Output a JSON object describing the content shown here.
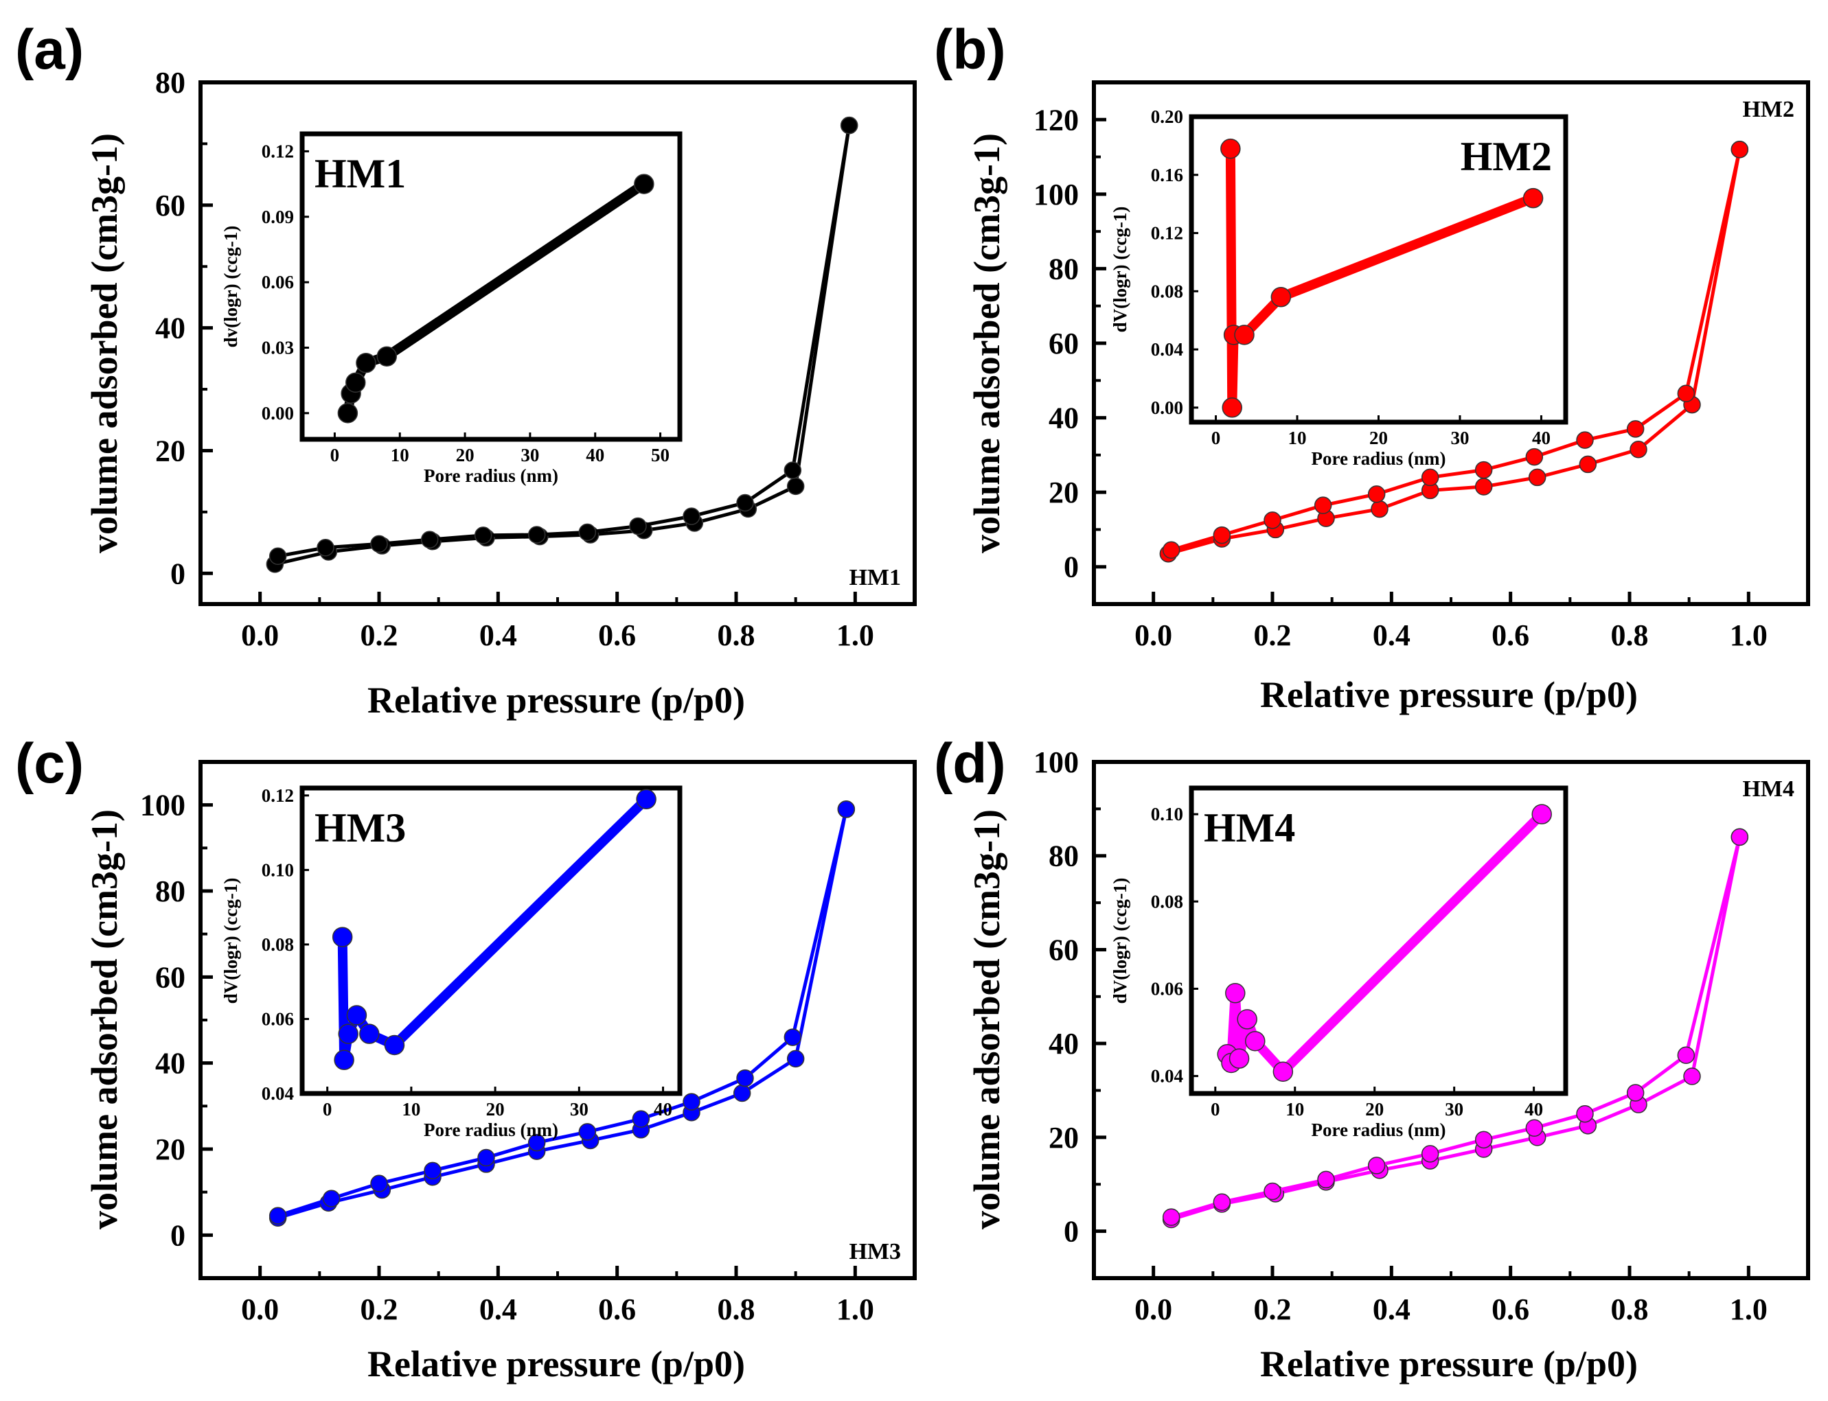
{
  "panels": [
    {
      "label": "(a)",
      "color": "#000000",
      "corner_label": "HM1",
      "corner_pos": "bottom-right",
      "chart_data": {
        "type": "line",
        "xlabel": "Relative pressure (p/p0)",
        "ylabel": "volume adsorbed (cm3g-1)",
        "xlim": [
          -0.1,
          1.1
        ],
        "ylim": [
          -5,
          80
        ],
        "xticks": [
          0.0,
          0.2,
          0.4,
          0.6,
          0.8,
          1.0
        ],
        "yticks": [
          0,
          20,
          40,
          60,
          80
        ],
        "series": [
          {
            "name": "adsorption",
            "x": [
              0.025,
              0.115,
              0.205,
              0.29,
              0.38,
              0.47,
              0.555,
              0.645,
              0.73,
              0.82,
              0.9,
              0.99
            ],
            "y": [
              1.5,
              3.5,
              4.5,
              5.2,
              5.8,
              6.0,
              6.3,
              7.0,
              8.2,
              10.5,
              14.2,
              73.0
            ]
          },
          {
            "name": "desorption",
            "x": [
              0.99,
              0.895,
              0.815,
              0.725,
              0.635,
              0.55,
              0.465,
              0.375,
              0.285,
              0.2,
              0.11,
              0.03
            ],
            "y": [
              73.0,
              16.8,
              11.5,
              9.3,
              7.7,
              6.7,
              6.3,
              6.2,
              5.5,
              4.8,
              4.2,
              2.8
            ]
          }
        ],
        "inset": {
          "title": "HM1",
          "xlabel": "Pore radius (nm)",
          "ylabel": "dv(logr) (ccg-1)",
          "xlim": [
            -5,
            53
          ],
          "ylim": [
            -0.012,
            0.128
          ],
          "xticks": [
            0,
            10,
            20,
            30,
            40,
            50
          ],
          "yticks": [
            0.0,
            0.03,
            0.06,
            0.09,
            0.12
          ],
          "ytick_labels": [
            "0.00",
            "0.03",
            "0.06",
            "0.09",
            "0.12"
          ],
          "series": {
            "x": [
              2.0,
              2.5,
              3.2,
              4.8,
              8.0,
              47.5
            ],
            "y": [
              0.0,
              0.009,
              0.014,
              0.023,
              0.026,
              0.105
            ]
          }
        }
      }
    },
    {
      "label": "(b)",
      "color": "#ff0000",
      "corner_label": "HM2",
      "corner_pos": "top-right",
      "chart_data": {
        "type": "line",
        "xlabel": "Relative pressure (p/p0)",
        "ylabel": "volume adsorbed (cm3g-1)",
        "xlim": [
          -0.1,
          1.1
        ],
        "ylim": [
          -10,
          130
        ],
        "xticks": [
          0.0,
          0.2,
          0.4,
          0.6,
          0.8,
          1.0
        ],
        "yticks": [
          0,
          20,
          40,
          60,
          80,
          100,
          120
        ],
        "series": [
          {
            "name": "adsorption",
            "x": [
              0.025,
              0.115,
              0.205,
              0.29,
              0.38,
              0.465,
              0.555,
              0.645,
              0.73,
              0.815,
              0.905,
              0.985
            ],
            "y": [
              3.5,
              7.5,
              10.0,
              13.0,
              15.5,
              20.5,
              21.5,
              24.0,
              27.5,
              31.5,
              43.5,
              112.0
            ]
          },
          {
            "name": "desorption",
            "x": [
              0.985,
              0.895,
              0.81,
              0.725,
              0.64,
              0.555,
              0.465,
              0.375,
              0.285,
              0.2,
              0.115,
              0.03
            ],
            "y": [
              112.0,
              46.5,
              37.0,
              34.0,
              29.5,
              26.0,
              24.0,
              19.5,
              16.5,
              12.5,
              8.5,
              4.5
            ]
          }
        ],
        "inset": {
          "title": "HM2",
          "xlabel": "Pore radius (nm)",
          "ylabel": "dV(logr) (ccg-1)",
          "xlim": [
            -3,
            43
          ],
          "ylim": [
            -0.01,
            0.2
          ],
          "xticks": [
            0,
            10,
            20,
            30,
            40
          ],
          "yticks": [
            0.0,
            0.04,
            0.08,
            0.12,
            0.16,
            0.2
          ],
          "ytick_labels": [
            "0.00",
            "0.04",
            "0.08",
            "0.12",
            "0.16",
            "0.20"
          ],
          "series": {
            "x": [
              1.8,
              2.0,
              2.2,
              3.5,
              8.0,
              39.0
            ],
            "y": [
              0.178,
              0.0,
              0.05,
              0.05,
              0.076,
              0.144
            ]
          }
        }
      }
    },
    {
      "label": "(c)",
      "color": "#0000ff",
      "corner_label": "HM3",
      "corner_pos": "bottom-right",
      "chart_data": {
        "type": "line",
        "xlabel": "Relative pressure (p/p0)",
        "ylabel": "volume adsorbed (cm3g-1)",
        "xlim": [
          -0.1,
          1.1
        ],
        "ylim": [
          -10,
          110
        ],
        "xticks": [
          0.0,
          0.2,
          0.4,
          0.6,
          0.8,
          1.0
        ],
        "yticks": [
          0,
          20,
          40,
          60,
          80,
          100
        ],
        "series": [
          {
            "name": "adsorption",
            "x": [
              0.03,
              0.115,
              0.205,
              0.29,
              0.38,
              0.465,
              0.555,
              0.64,
              0.725,
              0.81,
              0.9,
              0.985
            ],
            "y": [
              4.0,
              7.5,
              10.5,
              13.5,
              16.5,
              19.5,
              22.0,
              24.5,
              28.5,
              33.0,
              41.0,
              99.0
            ]
          },
          {
            "name": "desorption",
            "x": [
              0.985,
              0.895,
              0.815,
              0.725,
              0.64,
              0.55,
              0.465,
              0.38,
              0.29,
              0.2,
              0.12,
              0.03
            ],
            "y": [
              99.0,
              46.0,
              36.5,
              31.0,
              27.0,
              24.0,
              21.5,
              18.0,
              15.0,
              12.0,
              8.5,
              4.5
            ]
          }
        ],
        "inset": {
          "title": "HM3",
          "xlabel": "Pore radius (nm)",
          "ylabel": "dV(logr) (ccg-1)",
          "xlim": [
            -3,
            42
          ],
          "ylim": [
            0.04,
            0.122
          ],
          "xticks": [
            0,
            10,
            20,
            30,
            40
          ],
          "yticks": [
            0.04,
            0.06,
            0.08,
            0.1,
            0.12
          ],
          "ytick_labels": [
            "0.04",
            "0.06",
            "0.08",
            "0.10",
            "0.12"
          ],
          "series": {
            "x": [
              1.8,
              2.0,
              2.5,
              3.5,
              5.0,
              8.0,
              38.0
            ],
            "y": [
              0.082,
              0.049,
              0.056,
              0.061,
              0.056,
              0.053,
              0.119
            ]
          }
        }
      }
    },
    {
      "label": "(d)",
      "color": "#ff00ff",
      "corner_label": "HM4",
      "corner_pos": "top-right",
      "chart_data": {
        "type": "line",
        "xlabel": "Relative pressure (p/p0)",
        "ylabel": "volume adsorbed (cm3g-1)",
        "xlim": [
          -0.1,
          1.1
        ],
        "ylim": [
          -10,
          100
        ],
        "xticks": [
          0.0,
          0.2,
          0.4,
          0.6,
          0.8,
          1.0
        ],
        "yticks": [
          0,
          20,
          40,
          60,
          80,
          100
        ],
        "series": [
          {
            "name": "adsorption",
            "x": [
              0.03,
              0.115,
              0.205,
              0.29,
              0.38,
              0.465,
              0.555,
              0.645,
              0.73,
              0.815,
              0.905,
              0.985
            ],
            "y": [
              2.5,
              5.8,
              8.0,
              10.5,
              13.0,
              15.0,
              17.5,
              20.0,
              22.5,
              27.0,
              33.0,
              84.0
            ]
          },
          {
            "name": "desorption",
            "x": [
              0.985,
              0.895,
              0.81,
              0.725,
              0.64,
              0.555,
              0.465,
              0.375,
              0.29,
              0.2,
              0.115,
              0.03
            ],
            "y": [
              84.0,
              37.5,
              29.5,
              25.0,
              22.0,
              19.5,
              16.5,
              14.0,
              11.0,
              8.5,
              6.2,
              3.0
            ]
          }
        ],
        "inset": {
          "title": "HM4",
          "xlabel": "Pore radius (nm)",
          "ylabel": "dV(logr) (ccg-1)",
          "xlim": [
            -3,
            44
          ],
          "ylim": [
            0.036,
            0.106
          ],
          "xticks": [
            0,
            10,
            20,
            30,
            40
          ],
          "yticks": [
            0.04,
            0.06,
            0.08,
            0.1
          ],
          "ytick_labels": [
            "0.04",
            "0.06",
            "0.08",
            "0.10"
          ],
          "series": {
            "x": [
              1.5,
              2.0,
              2.5,
              3.0,
              4.0,
              5.0,
              8.5,
              41.0
            ],
            "y": [
              0.045,
              0.043,
              0.059,
              0.044,
              0.053,
              0.048,
              0.041,
              0.1
            ]
          }
        }
      }
    }
  ]
}
